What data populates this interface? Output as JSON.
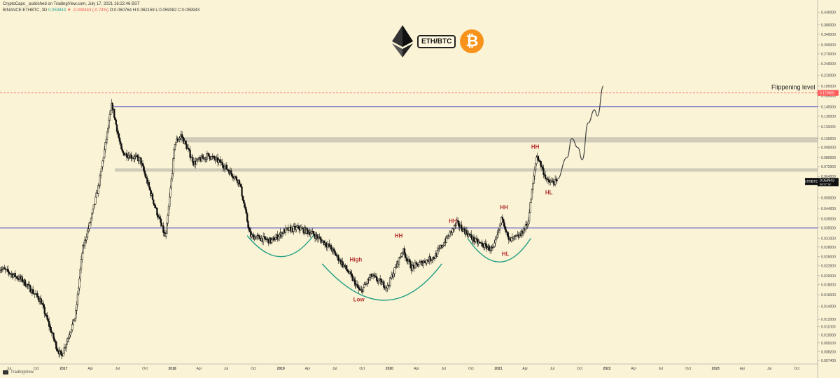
{
  "header": {
    "line1": "CryptoCapo_ published on TradingView.com, July 17, 2021 16:22:46 BST",
    "symbol": "BINANCE:ETHBTC, 3D",
    "price": "0.059943",
    "change": "▼ -0.000443 (-0.74%)",
    "ohlc": "O:0.060764 H:0.062159 L:0.059082 C:0.059943"
  },
  "branding": "TradingView",
  "logos": {
    "pair_label": "ETH/BTC",
    "btc_symbol": "₿"
  },
  "colors": {
    "background": "#fbf3d5",
    "candle": "#111111",
    "horizontal_line": "#3b3bc8",
    "zone": "#c8c4b4",
    "arc": "#1f9e84",
    "flippening_line": "#ff5b5b",
    "projection": "#444444",
    "annotation": "#b23030"
  },
  "chart_data": {
    "type": "line",
    "series_type": "candlestick",
    "symbol": "ETHBTC",
    "x_ticks": [
      "Jul",
      "Oct",
      "2017",
      "Apr",
      "Jul",
      "Oct",
      "2018",
      "Apr",
      "Jul",
      "Oct",
      "2019",
      "Apr",
      "Jul",
      "Oct",
      "2020",
      "Apr",
      "Jul",
      "Oct",
      "2021",
      "Apr",
      "Jul",
      "Oct",
      "2022",
      "Apr",
      "Jul",
      "Oct",
      "2023",
      "Apr",
      "Jul",
      "Oct"
    ],
    "y_scale": "log",
    "y_ticks": [
      "0.440000",
      "0.380000",
      "0.340000",
      "0.300000",
      "0.270000",
      "0.240000",
      "0.210000",
      "0.185000",
      "0.165000",
      "0.145000",
      "0.130000",
      "0.115000",
      "0.100000",
      "0.090000",
      "0.080000",
      "0.072000",
      "0.064000",
      "0.058000",
      "0.050000",
      "0.044000",
      "0.039000",
      "0.035000",
      "0.031000",
      "0.028000",
      "0.025000",
      "0.022500",
      "0.020000",
      "0.018000",
      "0.016000",
      "0.014000",
      "0.012000",
      "0.011000",
      "0.010000",
      "0.009100",
      "0.008200",
      "0.007400"
    ],
    "price_path": [
      [
        "2016-06-01",
        0.022
      ],
      [
        "2016-08-15",
        0.019
      ],
      [
        "2016-10-15",
        0.015
      ],
      [
        "2016-12-10",
        0.0085
      ],
      [
        "2016-12-25",
        0.0078
      ],
      [
        "2017-02-10",
        0.0125
      ],
      [
        "2017-03-05",
        0.027
      ],
      [
        "2017-04-05",
        0.04
      ],
      [
        "2017-05-01",
        0.06
      ],
      [
        "2017-06-12",
        0.15
      ],
      [
        "2017-07-15",
        0.085
      ],
      [
        "2017-09-15",
        0.078
      ],
      [
        "2017-11-15",
        0.04
      ],
      [
        "2017-12-10",
        0.031
      ],
      [
        "2018-01-10",
        0.095
      ],
      [
        "2018-01-31",
        0.104
      ],
      [
        "2018-03-15",
        0.075
      ],
      [
        "2018-05-01",
        0.082
      ],
      [
        "2018-06-15",
        0.075
      ],
      [
        "2018-08-15",
        0.06
      ],
      [
        "2018-09-20",
        0.032
      ],
      [
        "2018-12-01",
        0.03
      ],
      [
        "2019-01-15",
        0.034
      ],
      [
        "2019-03-01",
        0.035
      ],
      [
        "2019-04-15",
        0.033
      ],
      [
        "2019-06-15",
        0.028
      ],
      [
        "2019-08-15",
        0.021
      ],
      [
        "2019-09-25",
        0.0165
      ],
      [
        "2019-11-01",
        0.02
      ],
      [
        "2019-12-25",
        0.0175
      ],
      [
        "2020-02-15",
        0.027
      ],
      [
        "2020-03-15",
        0.022
      ],
      [
        "2020-06-01",
        0.025
      ],
      [
        "2020-08-15",
        0.037
      ],
      [
        "2020-10-15",
        0.03
      ],
      [
        "2020-12-15",
        0.027
      ],
      [
        "2021-01-15",
        0.04
      ],
      [
        "2021-02-05",
        0.03
      ],
      [
        "2021-03-15",
        0.032
      ],
      [
        "2021-04-10",
        0.037
      ],
      [
        "2021-05-10",
        0.083
      ],
      [
        "2021-06-15",
        0.06
      ],
      [
        "2021-07-17",
        0.059943
      ]
    ],
    "projection_path": [
      [
        "2021-07-17",
        0.062
      ],
      [
        "2021-08-20",
        0.08
      ],
      [
        "2021-09-05",
        0.1
      ],
      [
        "2021-09-25",
        0.09
      ],
      [
        "2021-10-10",
        0.078
      ],
      [
        "2021-10-30",
        0.12
      ],
      [
        "2021-11-20",
        0.14
      ],
      [
        "2021-11-30",
        0.13
      ],
      [
        "2021-12-20",
        0.185
      ]
    ],
    "last_price_label": "ETHBTC",
    "last_price_value": "0.059943",
    "last_price_sub": "08:37:18",
    "flippening_value": "0.170689",
    "flippening_label": "Flippening level",
    "horizontal_levels": [
      0.145,
      0.035
    ],
    "zones": [
      [
        0.0955,
        0.1015
      ],
      [
        0.0678,
        0.0705
      ]
    ],
    "annotations": [
      {
        "text": "Low",
        "x": "2019-09-20",
        "y": 0.0148
      },
      {
        "text": "High",
        "x": "2019-09-10",
        "y": 0.0236
      },
      {
        "text": "HH",
        "x": "2020-02-01",
        "y": 0.0312
      },
      {
        "text": "HH",
        "x": "2020-08-01",
        "y": 0.0372
      },
      {
        "text": "HL",
        "x": "2021-01-25",
        "y": 0.0252
      },
      {
        "text": "HH",
        "x": "2021-01-20",
        "y": 0.0436
      },
      {
        "text": "HH",
        "x": "2021-05-05",
        "y": 0.0885
      },
      {
        "text": "HL",
        "x": "2021-06-20",
        "y": 0.052
      }
    ],
    "arcs": [
      {
        "start": [
          "2018-09-10",
          0.032
        ],
        "bottom": [
          "2019-01-01",
          0.025
        ],
        "end": [
          "2019-04-20",
          0.032
        ]
      },
      {
        "start": [
          "2019-05-20",
          0.023
        ],
        "bottom": [
          "2019-12-15",
          0.015
        ],
        "end": [
          "2020-06-25",
          0.023
        ]
      },
      {
        "start": [
          "2020-09-20",
          0.031
        ],
        "bottom": [
          "2021-01-05",
          0.0235
        ],
        "end": [
          "2021-04-20",
          0.031
        ]
      }
    ]
  }
}
